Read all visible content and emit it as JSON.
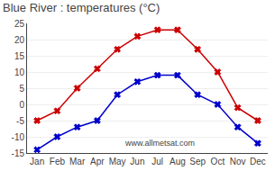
{
  "chart_data": {
    "type": "line",
    "title": "Blue River : temperatures (°C)",
    "categories": [
      "Jan",
      "Feb",
      "Mar",
      "Apr",
      "May",
      "Jun",
      "Jul",
      "Aug",
      "Sep",
      "Oct",
      "Nov",
      "Dec"
    ],
    "series": [
      {
        "color": "#cc0000",
        "marker": "x",
        "line_style": "solid",
        "values": [
          -5,
          -2,
          5,
          11,
          17,
          21,
          23,
          23,
          17,
          10,
          -1,
          -5
        ]
      },
      {
        "color": "#0000cc",
        "marker": "x",
        "line_style": "solid",
        "values": [
          -14,
          -10,
          -7,
          -5,
          3,
          7,
          9,
          9,
          3,
          0,
          -7,
          -12
        ]
      }
    ],
    "ylim": [
      -15,
      25
    ],
    "yticks": [
      -15,
      -10,
      -5,
      0,
      5,
      10,
      15,
      20,
      25
    ],
    "grid": true,
    "annotations": [
      "www.allmetsat.com"
    ]
  }
}
